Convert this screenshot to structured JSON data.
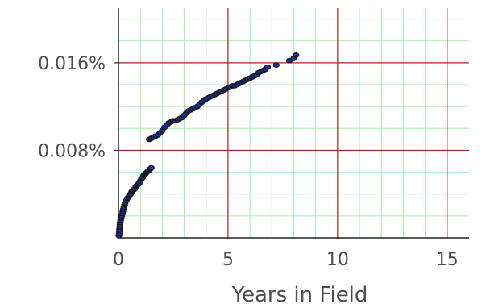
{
  "chart_data": {
    "type": "scatter",
    "xlabel": "Years in Field",
    "ylabel": "",
    "xlim": [
      0,
      16
    ],
    "ylim": [
      0,
      0.021
    ],
    "grid": true,
    "x_ticks": [
      0,
      5,
      10,
      15
    ],
    "x_tick_labels": [
      "0",
      "5",
      "10",
      "15"
    ],
    "y_ticks": [
      0.008,
      0.016
    ],
    "y_tick_labels": [
      "0.008%",
      "0.016%"
    ],
    "minor_grid_step": {
      "x": 1,
      "y": 0.002
    },
    "colors": {
      "major_grid": "#b22222",
      "minor_grid": "#a8ecb4",
      "point_fill": "#1a2fd6",
      "point_edge": "#1a1a1a",
      "axis": "#222222",
      "text": "#4d4d4d"
    },
    "series": [
      {
        "x": [
          0.02,
          0.03,
          0.04,
          0.05,
          0.06,
          0.07,
          0.08,
          0.1,
          0.12,
          0.15,
          0.18,
          0.2,
          0.22,
          0.25,
          0.28,
          0.3,
          0.35,
          0.4,
          0.45,
          0.5,
          0.55,
          0.6,
          0.65,
          0.7,
          0.75,
          0.8,
          0.85,
          0.9,
          0.95,
          1.0,
          1.05,
          1.1,
          1.15,
          1.2,
          1.25,
          1.3,
          1.35,
          1.4,
          1.45,
          1.5,
          1.4,
          1.5,
          1.6,
          1.7,
          1.8,
          1.9,
          2.0,
          2.1,
          2.2,
          2.3,
          2.4,
          2.5,
          2.6,
          2.7,
          2.8,
          2.9,
          3.0,
          3.1,
          3.2,
          3.3,
          3.4,
          3.5,
          3.6,
          3.7,
          3.8,
          3.9,
          4.0,
          4.1,
          4.2,
          4.3,
          4.4,
          4.5,
          4.6,
          4.7,
          4.8,
          4.9,
          5.0,
          5.1,
          5.2,
          5.3,
          5.4,
          5.5,
          5.6,
          5.7,
          5.8,
          5.9,
          6.0,
          6.1,
          6.2,
          6.3,
          6.4,
          6.5,
          6.6,
          6.7,
          6.8,
          7.2,
          7.8,
          8.0,
          8.1
        ],
        "y": [
          0.0002,
          0.0004,
          0.0006,
          0.0008,
          0.001,
          0.0012,
          0.0014,
          0.0016,
          0.0018,
          0.002,
          0.0022,
          0.0024,
          0.0026,
          0.0028,
          0.003,
          0.0032,
          0.0034,
          0.0036,
          0.0037,
          0.0039,
          0.004,
          0.0042,
          0.0043,
          0.0044,
          0.0045,
          0.0047,
          0.0048,
          0.0049,
          0.005,
          0.0052,
          0.0054,
          0.0055,
          0.0057,
          0.0058,
          0.0059,
          0.006,
          0.0061,
          0.0062,
          0.0063,
          0.0064,
          0.009,
          0.0091,
          0.0092,
          0.0093,
          0.0094,
          0.0096,
          0.0098,
          0.0101,
          0.0103,
          0.0105,
          0.0106,
          0.0107,
          0.0107,
          0.0108,
          0.0109,
          0.011,
          0.0112,
          0.0114,
          0.0116,
          0.0117,
          0.0118,
          0.0119,
          0.012,
          0.0122,
          0.0124,
          0.0126,
          0.0127,
          0.0128,
          0.0129,
          0.013,
          0.0131,
          0.0132,
          0.0133,
          0.0134,
          0.0135,
          0.0136,
          0.0137,
          0.0138,
          0.0139,
          0.0139,
          0.014,
          0.0141,
          0.0142,
          0.0143,
          0.0144,
          0.0145,
          0.0146,
          0.0147,
          0.0148,
          0.0149,
          0.0151,
          0.0152,
          0.0153,
          0.0154,
          0.0156,
          0.0158,
          0.0162,
          0.0164,
          0.0167
        ]
      }
    ]
  }
}
